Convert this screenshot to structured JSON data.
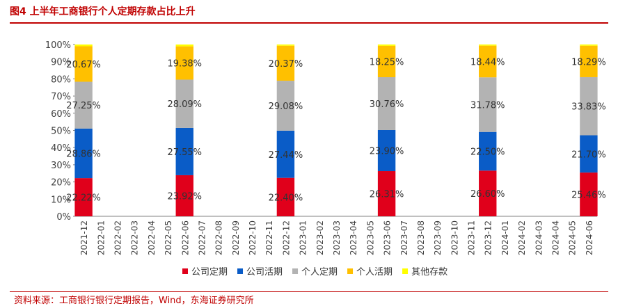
{
  "header": {
    "title": "图4 上半年工商银行个人定期存款占比上升",
    "source": "资料来源：工商银行银行定期报告，Wind，东海证券研究所"
  },
  "chart_data": {
    "type": "bar",
    "stacked": true,
    "ylim": [
      0,
      100
    ],
    "yticks": [
      "0%",
      "10%",
      "20%",
      "30%",
      "40%",
      "50%",
      "60%",
      "70%",
      "80%",
      "90%",
      "100%"
    ],
    "categories": [
      "2021-12",
      "2022-01",
      "2022-02",
      "2022-03",
      "2022-04",
      "2022-05",
      "2022-06",
      "2022-07",
      "2022-08",
      "2022-09",
      "2022-10",
      "2022-11",
      "2022-12",
      "2023-01",
      "2023-02",
      "2023-03",
      "2023-04",
      "2023-05",
      "2023-06",
      "2023-07",
      "2023-08",
      "2023-09",
      "2023-10",
      "2023-11",
      "2023-12",
      "2024-01",
      "2024-02",
      "2024-03",
      "2024-04",
      "2024-05",
      "2024-06"
    ],
    "legend_position": "bottom",
    "series": [
      {
        "name": "公司定期",
        "color": "#e0001b",
        "values": [
          22.22,
          null,
          null,
          null,
          null,
          null,
          23.92,
          null,
          null,
          null,
          null,
          null,
          22.4,
          null,
          null,
          null,
          null,
          null,
          26.31,
          null,
          null,
          null,
          null,
          null,
          26.6,
          null,
          null,
          null,
          null,
          null,
          25.46
        ],
        "labels": [
          "22.22%",
          "",
          "",
          "",
          "",
          "",
          "23.92%",
          "",
          "",
          "",
          "",
          "",
          "22.40%",
          "",
          "",
          "",
          "",
          "",
          "26.31%",
          "",
          "",
          "",
          "",
          "",
          "26.60%",
          "",
          "",
          "",
          "",
          "",
          "25.46%"
        ]
      },
      {
        "name": "公司活期",
        "color": "#0a5cc7",
        "values": [
          28.86,
          null,
          null,
          null,
          null,
          null,
          27.55,
          null,
          null,
          null,
          null,
          null,
          27.44,
          null,
          null,
          null,
          null,
          null,
          23.9,
          null,
          null,
          null,
          null,
          null,
          22.5,
          null,
          null,
          null,
          null,
          null,
          21.7
        ],
        "labels": [
          "28.86%",
          "",
          "",
          "",
          "",
          "",
          "27.55%",
          "",
          "",
          "",
          "",
          "",
          "27.44%",
          "",
          "",
          "",
          "",
          "",
          "23.90%",
          "",
          "",
          "",
          "",
          "",
          "22.50%",
          "",
          "",
          "",
          "",
          "",
          "21.70%"
        ]
      },
      {
        "name": "个人定期",
        "color": "#b3b3b3",
        "values": [
          27.25,
          null,
          null,
          null,
          null,
          null,
          28.09,
          null,
          null,
          null,
          null,
          null,
          29.08,
          null,
          null,
          null,
          null,
          null,
          30.76,
          null,
          null,
          null,
          null,
          null,
          31.78,
          null,
          null,
          null,
          null,
          null,
          33.83
        ],
        "labels": [
          "27.25%",
          "",
          "",
          "",
          "",
          "",
          "28.09%",
          "",
          "",
          "",
          "",
          "",
          "29.08%",
          "",
          "",
          "",
          "",
          "",
          "30.76%",
          "",
          "",
          "",
          "",
          "",
          "31.78%",
          "",
          "",
          "",
          "",
          "",
          "33.83%"
        ]
      },
      {
        "name": "个人活期",
        "color": "#ffc000",
        "values": [
          20.67,
          null,
          null,
          null,
          null,
          null,
          19.38,
          null,
          null,
          null,
          null,
          null,
          20.37,
          null,
          null,
          null,
          null,
          null,
          18.25,
          null,
          null,
          null,
          null,
          null,
          18.44,
          null,
          null,
          null,
          null,
          null,
          18.29
        ],
        "labels": [
          "20.67%",
          "",
          "",
          "",
          "",
          "",
          "19.38%",
          "",
          "",
          "",
          "",
          "",
          "20.37%",
          "",
          "",
          "",
          "",
          "",
          "18.25%",
          "",
          "",
          "",
          "",
          "",
          "18.44%",
          "",
          "",
          "",
          "",
          "",
          "18.29%"
        ]
      },
      {
        "name": "其他存款",
        "color": "#ffff00",
        "values": [
          1.0,
          null,
          null,
          null,
          null,
          null,
          1.06,
          null,
          null,
          null,
          null,
          null,
          0.71,
          null,
          null,
          null,
          null,
          null,
          0.78,
          null,
          null,
          null,
          null,
          null,
          0.68,
          null,
          null,
          null,
          null,
          null,
          0.72
        ],
        "labels": [
          "",
          "",
          "",
          "",
          "",
          "",
          "",
          "",
          "",
          "",
          "",
          "",
          "",
          "",
          "",
          "",
          "",
          "",
          "",
          "",
          "",
          "",
          "",
          "",
          "",
          "",
          "",
          "",
          "",
          "",
          ""
        ]
      }
    ]
  }
}
